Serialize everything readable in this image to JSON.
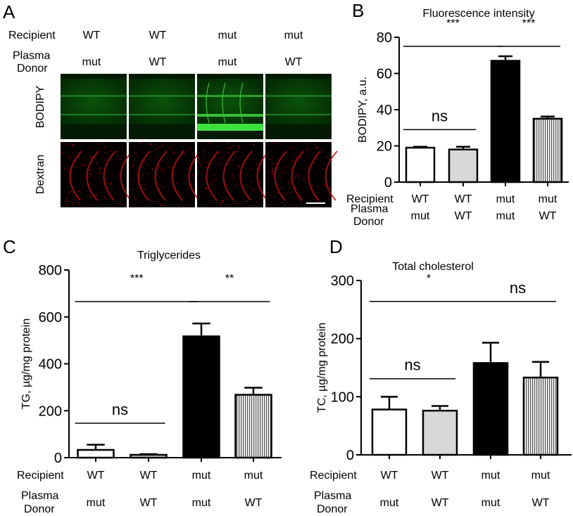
{
  "panel_a": {
    "letter": "A",
    "recipient_label": "Recipient",
    "plasma_label": "Plasma",
    "donor_label": "Donor",
    "recipient": [
      "WT",
      "WT",
      "mut",
      "mut"
    ],
    "donor": [
      "mut",
      "WT",
      "mut",
      "WT"
    ],
    "row_labels": [
      "BODIPY",
      "Dextran"
    ],
    "colors": {
      "bodipy": "#22c022",
      "dextran": "#d01010"
    }
  },
  "chart_data": [
    {
      "letter": "B",
      "type": "bar",
      "title": "Fluorescence intensity",
      "ylabel": "BODIPY, a.u.",
      "ylim": [
        0,
        80
      ],
      "yticks": [
        "0",
        "20",
        "40",
        "60",
        "80"
      ],
      "recipient_label": "Recipient",
      "plasma_label": "Plasma",
      "donor_label": "Donor",
      "recipient": [
        "WT",
        "WT",
        "mut",
        "mut"
      ],
      "donor": [
        "mut",
        "WT",
        "mut",
        "WT"
      ],
      "values": [
        19,
        18,
        67,
        35
      ],
      "errors": [
        0.5,
        1.5,
        2.5,
        1.2
      ],
      "fills": [
        "white",
        "lightgray",
        "black",
        "vertical-stripes"
      ],
      "significance": [
        {
          "from": 0,
          "to": 1,
          "label": "ns",
          "y": 29
        },
        {
          "from": 0,
          "to": 2,
          "label": "***",
          "y": 75
        },
        {
          "from": 2,
          "to": 3,
          "label": "***",
          "y": 75
        }
      ]
    },
    {
      "letter": "C",
      "type": "bar",
      "title": "Triglycerides",
      "ylabel": "TG, µg/mg protein",
      "ylim": [
        0,
        800
      ],
      "yticks": [
        "0",
        "200",
        "400",
        "600",
        "800"
      ],
      "recipient_label": "Recipient",
      "plasma_label": "Plasma",
      "donor_label": "Donor",
      "recipient": [
        "WT",
        "WT",
        "mut",
        "mut"
      ],
      "donor": [
        "mut",
        "WT",
        "mut",
        "WT"
      ],
      "values": [
        33,
        12,
        517,
        268
      ],
      "errors": [
        22,
        3,
        55,
        30
      ],
      "fills": [
        "white",
        "lightgray",
        "black",
        "vertical-stripes"
      ],
      "significance": [
        {
          "from": 0,
          "to": 1,
          "label": "ns",
          "y": 147
        },
        {
          "from": 0,
          "to": 2,
          "label": "***",
          "y": 665
        },
        {
          "from": 2,
          "to": 3,
          "label": "**",
          "y": 665
        }
      ]
    },
    {
      "letter": "D",
      "type": "bar",
      "title": "Total cholesterol",
      "ylabel": "TC, µg/mg protein",
      "ylim": [
        0,
        300
      ],
      "yticks": [
        "0",
        "100",
        "200",
        "300"
      ],
      "recipient_label": "Recipient",
      "plasma_label": "Plasma",
      "donor_label": "Donor",
      "recipient": [
        "WT",
        "WT",
        "mut",
        "mut"
      ],
      "donor": [
        "mut",
        "WT",
        "mut",
        "WT"
      ],
      "values": [
        78,
        76,
        158,
        133
      ],
      "errors": [
        22,
        8,
        35,
        27
      ],
      "fills": [
        "white",
        "lightgray",
        "black",
        "vertical-stripes"
      ],
      "significance": [
        {
          "from": 0,
          "to": 1,
          "label": "ns",
          "y": 131
        },
        {
          "from": 0,
          "to": 2,
          "label": "*",
          "y": 264
        },
        {
          "from": 2,
          "to": 3,
          "label": "ns",
          "y": 264
        }
      ]
    }
  ]
}
